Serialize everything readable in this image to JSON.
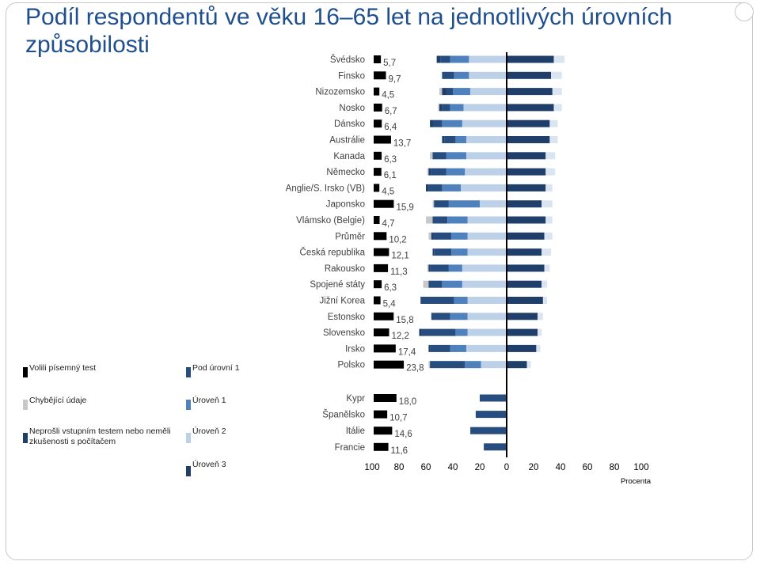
{
  "title": "Podíl respondentů ve věku 16–65 let na jednotlivých úrovních způsobilosti",
  "chart_data": {
    "type": "bar",
    "orientation": "horizontal-stacked-diverging",
    "xlabel": "Procenta",
    "xticks": [
      "100",
      "80",
      "60",
      "40",
      "20",
      "0",
      "20",
      "40",
      "60",
      "80",
      "100"
    ],
    "xlim": [
      -100,
      100
    ],
    "colors": {
      "volili_pisemny_test": "#000000",
      "chybejici_udaje": "#c8c8c8",
      "neprosli": "#1f3f6a",
      "pod_uroven_1": "#264d7e",
      "uroven_1": "#4f81bd",
      "uroven_2": "#bcd0e8",
      "uroven_3": "#1f3f6a",
      "uroven_4_5": "#dbe5f2"
    },
    "legend": [
      {
        "key": "volili_pisemny_test",
        "label": "Volili písemný test"
      },
      {
        "key": "pod_uroven_1",
        "label": "Pod úrovní 1"
      },
      {
        "key": "chybejici_udaje",
        "label": "Chybějící údaje"
      },
      {
        "key": "uroven_1",
        "label": "Úroveň 1"
      },
      {
        "key": "neprosli",
        "label": "Neprošli vstupním testem nebo neměli zkušenosti s počítačem"
      },
      {
        "key": "uroven_2",
        "label": "Úroveň 2"
      },
      {
        "key": "uroven_3",
        "label": "Úroveň 3"
      }
    ],
    "countries": [
      {
        "name": "Švédsko",
        "test": 5.7,
        "left": [
          0,
          0,
          3,
          7,
          14,
          28
        ],
        "right": [
          35,
          8
        ]
      },
      {
        "name": "Finsko",
        "test": 9.7,
        "left": [
          0,
          0,
          0,
          9,
          11,
          28
        ],
        "right": [
          33,
          8
        ]
      },
      {
        "name": "Nizozemsko",
        "test": 4.5,
        "left": [
          0,
          2,
          3,
          5,
          13,
          27
        ],
        "right": [
          34,
          7
        ]
      },
      {
        "name": "Nosko",
        "test": 6.7,
        "left": [
          0,
          1,
          2,
          6,
          10,
          32
        ],
        "right": [
          35,
          6
        ]
      },
      {
        "name": "Dánsko",
        "test": 6.4,
        "left": [
          0,
          0,
          2,
          7,
          15,
          33
        ],
        "right": [
          32,
          6
        ]
      },
      {
        "name": "Austrálie",
        "test": 13.7,
        "left": [
          0,
          0,
          2,
          8,
          8,
          30
        ],
        "right": [
          32,
          6
        ]
      },
      {
        "name": "Kanada",
        "test": 6.3,
        "left": [
          0,
          2,
          0,
          10,
          15,
          30
        ],
        "right": [
          29,
          7
        ]
      },
      {
        "name": "Německo",
        "test": 6.1,
        "left": [
          0,
          1,
          2,
          11,
          14,
          31
        ],
        "right": [
          29,
          7
        ]
      },
      {
        "name": "Anglie/S. Irsko (VB)",
        "test": 4.5,
        "left": [
          0,
          0,
          2,
          10,
          14,
          34
        ],
        "right": [
          29,
          5
        ]
      },
      {
        "name": "Japonsko",
        "test": 15.9,
        "left": [
          0,
          1,
          0,
          11,
          23,
          20
        ],
        "right": [
          26,
          8
        ]
      },
      {
        "name": "Vlámsko (Belgie)",
        "test": 4.7,
        "left": [
          0,
          5,
          0,
          11,
          15,
          29
        ],
        "right": [
          29,
          5
        ]
      },
      {
        "name": "Průměr",
        "test": 10.2,
        "left": [
          0,
          2,
          1,
          14,
          12,
          29
        ],
        "right": [
          28,
          6
        ]
      },
      {
        "name": "Česká republika",
        "test": 12.1,
        "left": [
          0,
          0,
          1,
          13,
          12,
          29
        ],
        "right": [
          26,
          7
        ]
      },
      {
        "name": "Rakousko",
        "test": 11.3,
        "left": [
          0,
          1,
          1,
          14,
          10,
          33
        ],
        "right": [
          28,
          4
        ]
      },
      {
        "name": "Spojené státy",
        "test": 6.3,
        "left": [
          0,
          4,
          0,
          10,
          15,
          33
        ],
        "right": [
          26,
          4
        ]
      },
      {
        "name": "Jižní Korea",
        "test": 5.4,
        "left": [
          0,
          0,
          0,
          25,
          10,
          29
        ],
        "right": [
          27,
          3
        ]
      },
      {
        "name": "Estonsko",
        "test": 15.8,
        "left": [
          0,
          0,
          0,
          14,
          13,
          29
        ],
        "right": [
          23,
          4
        ]
      },
      {
        "name": "Slovensko",
        "test": 12.2,
        "left": [
          0,
          0,
          2,
          25,
          9,
          29
        ],
        "right": [
          23,
          3
        ]
      },
      {
        "name": "Irsko",
        "test": 17.4,
        "left": [
          0,
          0,
          1,
          15,
          12,
          30
        ],
        "right": [
          22,
          3
        ]
      },
      {
        "name": "Polsko",
        "test": 23.8,
        "left": [
          0,
          1,
          0,
          26,
          12,
          19
        ],
        "right": [
          15,
          3
        ]
      },
      {
        "name": "Kypr",
        "test": 18.0,
        "left": [
          0,
          0,
          0,
          20,
          0,
          0
        ],
        "right": [
          0,
          0
        ]
      },
      {
        "name": "Španělsko",
        "test": 10.7,
        "left": [
          0,
          0,
          0,
          23,
          0,
          0
        ],
        "right": [
          0,
          0
        ]
      },
      {
        "name": "Itálie",
        "test": 14.6,
        "left": [
          0,
          0,
          0,
          27,
          0,
          0
        ],
        "right": [
          0,
          0
        ]
      },
      {
        "name": "Francie",
        "test": 11.6,
        "left": [
          0,
          0,
          0,
          17,
          0,
          0
        ],
        "right": [
          0,
          0
        ]
      }
    ],
    "test_labels": [
      "5,7",
      "9,7",
      "4,5",
      "6,7",
      "6,4",
      "13,7",
      "6,3",
      "6,1",
      "4,5",
      "15,9",
      "4,7",
      "10,2",
      "12,1",
      "11,3",
      "6,3",
      "5,4",
      "15,8",
      "12,2",
      "17,4",
      "23,8",
      "18,0",
      "10,7",
      "14,6",
      "11,6"
    ]
  }
}
